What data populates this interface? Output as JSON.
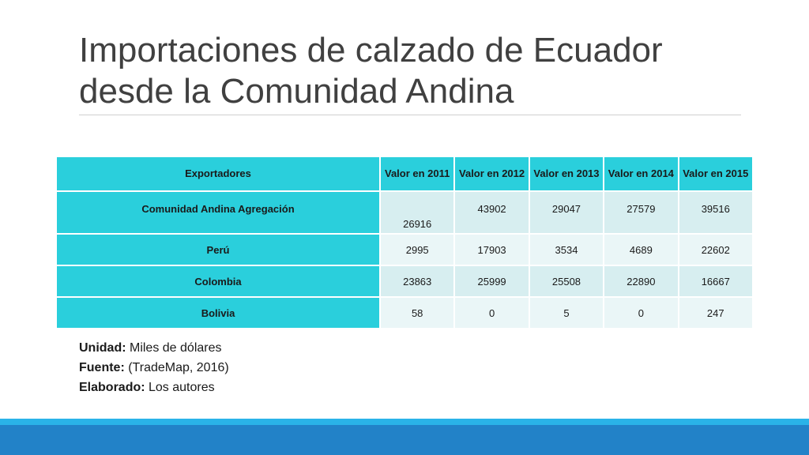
{
  "title": {
    "line1": "Importaciones de calzado de Ecuador",
    "line2": "desde la  Comunidad Andina"
  },
  "table": {
    "headers": [
      "Exportadores",
      "Valor en 2011",
      "Valor en 2012",
      "Valor en 2013",
      "Valor en 2014",
      "Valor en 2015"
    ],
    "rows": [
      {
        "label": "Comunidad Andina Agregación",
        "values": [
          "26916",
          "43902",
          "29047",
          "27579",
          "39516"
        ]
      },
      {
        "label": "Perú",
        "values": [
          "2995",
          "17903",
          "3534",
          "4689",
          "22602"
        ]
      },
      {
        "label": "Colombia",
        "values": [
          "23863",
          "25999",
          "25508",
          "22890",
          "16667"
        ]
      },
      {
        "label": "Bolivia",
        "values": [
          "58",
          "0",
          "5",
          "0",
          "247"
        ]
      }
    ]
  },
  "notes": {
    "unit_label": "Unidad:",
    "unit_value": " Miles de dólares",
    "source_label": "Fuente:",
    "source_value": " (TradeMap, 2016)",
    "author_label": "Elaborado:",
    "author_value": " Los autores"
  },
  "colors": {
    "header_bg": "#2acfdc",
    "row_odd": "#d7eef0",
    "row_even": "#eaf6f7",
    "footer_light": "#2ab3e8",
    "footer_dark": "#2282c8"
  }
}
